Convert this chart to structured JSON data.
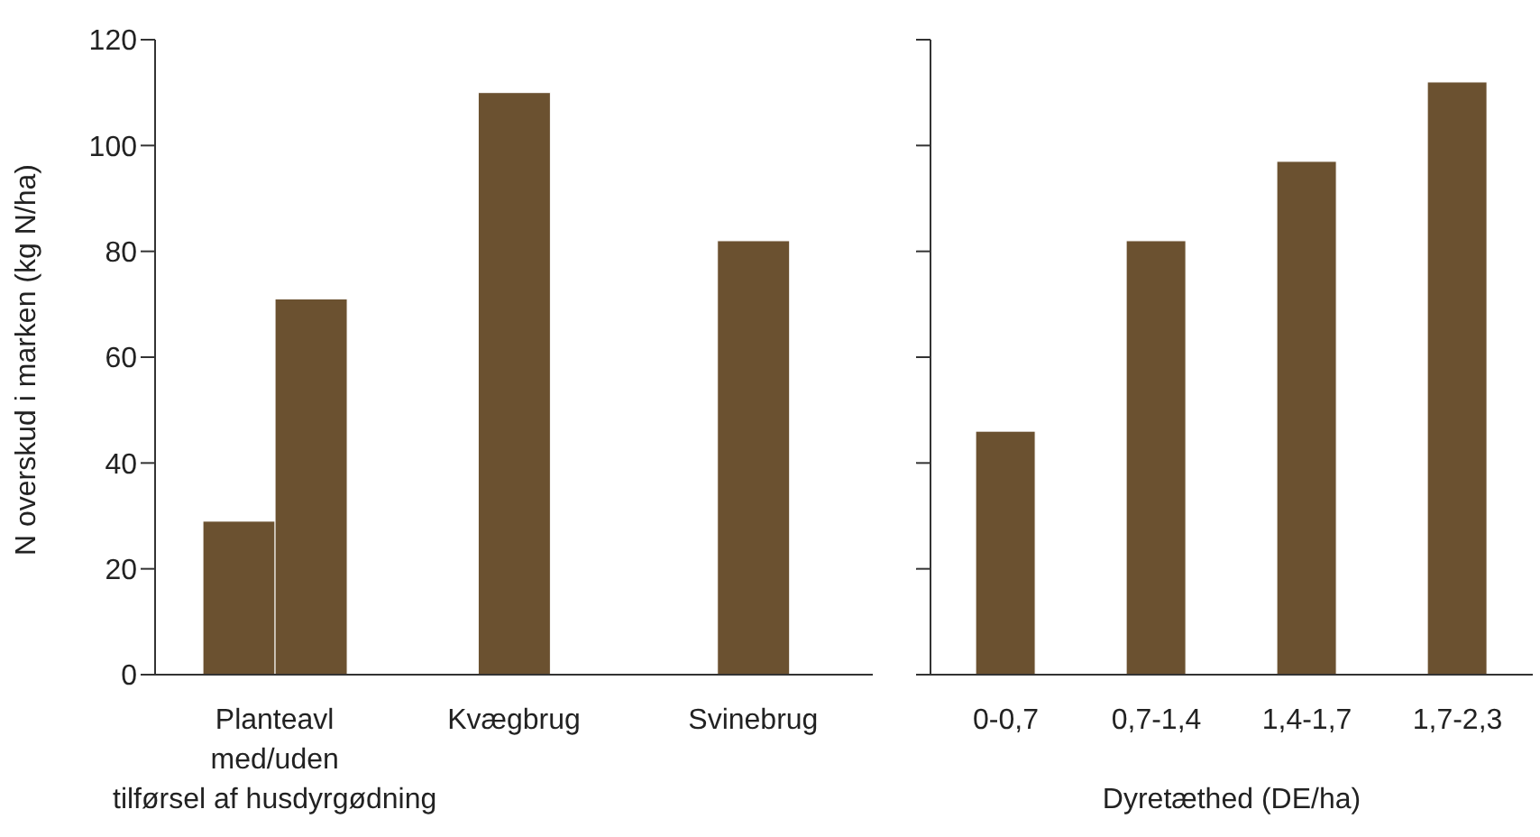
{
  "chart_data": [
    {
      "type": "bar",
      "categories": [
        "Planteavl\nmed/uden\ntilførsel af husdyrgødning",
        "Kvægbrug",
        "Svinebrug"
      ],
      "ylabel": "N overskud i marken (kg N/ha)",
      "series": [
        {
          "color": "#6b5130",
          "values": [
            29,
            110,
            82
          ]
        },
        {
          "color": "#6b5130",
          "values": [
            71,
            null,
            null
          ]
        }
      ],
      "ylim": [
        0,
        120
      ],
      "yticks": [
        0,
        20,
        40,
        60,
        80,
        100,
        120
      ],
      "grid": false,
      "legend": false
    },
    {
      "type": "bar",
      "categories": [
        "0-0,7",
        "0,7-1,4",
        "1,4-1,7",
        "1,7-2,3"
      ],
      "xlabel": "Dyretæthed (DE/ha)",
      "series": [
        {
          "color": "#6b5130",
          "values": [
            46,
            82,
            97,
            112
          ]
        }
      ],
      "ylim": [
        0,
        120
      ],
      "yticks": [
        0,
        20,
        40,
        60,
        80,
        100,
        120
      ],
      "tick_labels": "x",
      "grid": false,
      "legend": false
    }
  ]
}
